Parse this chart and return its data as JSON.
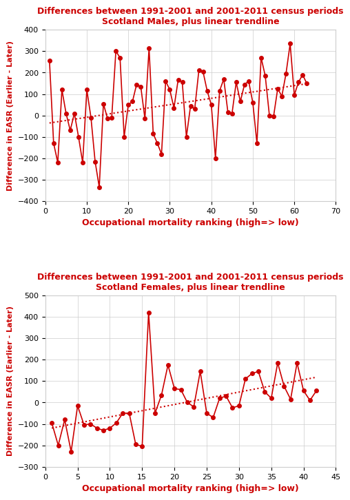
{
  "males_x": [
    1,
    2,
    3,
    4,
    5,
    6,
    7,
    8,
    9,
    10,
    11,
    12,
    13,
    14,
    15,
    16,
    17,
    18,
    19,
    20,
    21,
    22,
    23,
    24,
    25,
    26,
    27,
    28,
    29,
    30,
    31,
    32,
    33,
    34,
    35,
    36,
    37,
    38,
    39,
    40,
    41,
    42,
    43,
    44,
    45,
    46,
    47,
    48,
    49,
    50,
    51,
    52,
    53,
    54,
    55,
    56,
    57,
    58,
    59,
    60,
    61,
    62,
    63
  ],
  "males_y": [
    255,
    -130,
    -220,
    120,
    10,
    -70,
    10,
    -100,
    -220,
    120,
    -10,
    -215,
    -335,
    55,
    -15,
    -10,
    300,
    270,
    -100,
    50,
    65,
    145,
    135,
    -15,
    315,
    -85,
    -130,
    -180,
    160,
    120,
    35,
    165,
    155,
    -100,
    45,
    30,
    210,
    205,
    115,
    50,
    -200,
    115,
    170,
    15,
    10,
    155,
    65,
    145,
    160,
    60,
    -130,
    270,
    185,
    0,
    -5,
    125,
    90,
    195,
    335,
    95,
    155,
    190,
    150
  ],
  "females_x": [
    1,
    2,
    3,
    4,
    5,
    6,
    7,
    8,
    9,
    10,
    11,
    12,
    13,
    14,
    15,
    16,
    17,
    18,
    19,
    20,
    21,
    22,
    23,
    24,
    25,
    26,
    27,
    28,
    29,
    30,
    31,
    32,
    33,
    34,
    35,
    36,
    37,
    38,
    39,
    40,
    41,
    42
  ],
  "females_y": [
    -95,
    -200,
    -80,
    -230,
    -15,
    -105,
    -100,
    -120,
    -130,
    -120,
    -95,
    -50,
    -50,
    -195,
    -205,
    420,
    -50,
    35,
    175,
    65,
    60,
    0,
    -20,
    145,
    -50,
    -70,
    20,
    30,
    -25,
    -15,
    110,
    135,
    145,
    50,
    20,
    185,
    75,
    15,
    185,
    55,
    10,
    55
  ],
  "title1": "Differences between 1991-2001 and 2001-2011 census periods\nScotland Males, plus linear trendline",
  "title2": "Differences between 1991-2001 and 2001-2011 census periods\nScotland Females, plus linear trendline",
  "xlabel": "Occupational mortality ranking (high=> low)",
  "ylabel": "Difference in EASR (Earlier - Later)",
  "color": "#cc0000",
  "trendline_color": "#cc0000",
  "bg_color": "#ffffff",
  "males_xlim": [
    0,
    70
  ],
  "males_ylim": [
    -400,
    400
  ],
  "females_xlim": [
    0,
    45
  ],
  "females_ylim": [
    -300,
    500
  ],
  "males_xticks": [
    0,
    10,
    20,
    30,
    40,
    50,
    60,
    70
  ],
  "females_xticks": [
    0,
    5,
    10,
    15,
    20,
    25,
    30,
    35,
    40,
    45
  ],
  "males_yticks": [
    -400,
    -300,
    -200,
    -100,
    0,
    100,
    200,
    300,
    400
  ],
  "females_yticks": [
    -300,
    -200,
    -100,
    0,
    100,
    200,
    300,
    400,
    500
  ]
}
